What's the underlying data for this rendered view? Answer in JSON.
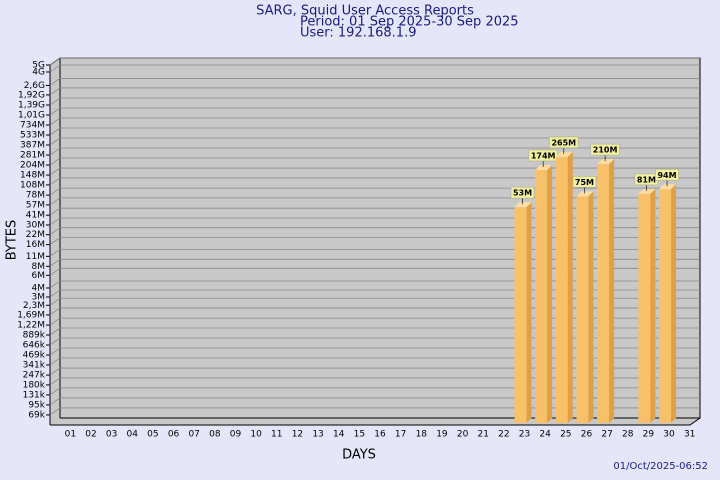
{
  "chart_data": {
    "type": "bar",
    "title": "SARG, Squid User Access Reports",
    "subtitle": [
      "Period: 01 Sep 2025-30 Sep 2025",
      "User: 192.168.1.9"
    ],
    "x_label": "DAYS",
    "y_label": "BYTES",
    "footer": "01/Oct/2025-06:52",
    "categories": [
      "01",
      "02",
      "03",
      "04",
      "05",
      "06",
      "07",
      "08",
      "09",
      "10",
      "11",
      "12",
      "13",
      "14",
      "15",
      "16",
      "17",
      "18",
      "19",
      "20",
      "21",
      "22",
      "23",
      "24",
      "25",
      "26",
      "27",
      "28",
      "29",
      "30",
      "31"
    ],
    "values": [
      null,
      null,
      null,
      null,
      null,
      null,
      null,
      null,
      null,
      null,
      null,
      null,
      null,
      null,
      null,
      null,
      null,
      null,
      null,
      null,
      null,
      null,
      53000000,
      174000000,
      265000000,
      75000000,
      210000000,
      null,
      81000000,
      94000000,
      null
    ],
    "value_labels": [
      null,
      null,
      null,
      null,
      null,
      null,
      null,
      null,
      null,
      null,
      null,
      null,
      null,
      null,
      null,
      null,
      null,
      null,
      null,
      null,
      null,
      null,
      "53M",
      "174M",
      "265M",
      "75M",
      "210M",
      null,
      "81M",
      "94M",
      null
    ],
    "color": "#f8c068",
    "log_scale": true,
    "grid": true,
    "ylim": [
      50000,
      5000000000
    ],
    "yticks": [
      {
        "value": 69000,
        "label": "69k"
      },
      {
        "value": 95000,
        "label": "95k"
      },
      {
        "value": 131000,
        "label": "131k"
      },
      {
        "value": 180000,
        "label": "180k"
      },
      {
        "value": 247000,
        "label": "247k"
      },
      {
        "value": 341000,
        "label": "341k"
      },
      {
        "value": 469000,
        "label": "469k"
      },
      {
        "value": 646000,
        "label": "646k"
      },
      {
        "value": 889000,
        "label": "889k"
      },
      {
        "value": 1220000,
        "label": "1,22M"
      },
      {
        "value": 1690000,
        "label": "1,69M"
      },
      {
        "value": 2300000,
        "label": "2,3M"
      },
      {
        "value": 3000000,
        "label": "3M"
      },
      {
        "value": 4000000,
        "label": "4M"
      },
      {
        "value": 6000000,
        "label": "6M"
      },
      {
        "value": 8000000,
        "label": "8M"
      },
      {
        "value": 11000000,
        "label": "11M"
      },
      {
        "value": 16000000,
        "label": "16M"
      },
      {
        "value": 22000000,
        "label": "22M"
      },
      {
        "value": 30000000,
        "label": "30M"
      },
      {
        "value": 41000000,
        "label": "41M"
      },
      {
        "value": 57000000,
        "label": "57M"
      },
      {
        "value": 78000000,
        "label": "78M"
      },
      {
        "value": 108000000,
        "label": "108M"
      },
      {
        "value": 148000000,
        "label": "148M"
      },
      {
        "value": 204000000,
        "label": "204M"
      },
      {
        "value": 281000000,
        "label": "281M"
      },
      {
        "value": 387000000,
        "label": "387M"
      },
      {
        "value": 533000000,
        "label": "533M"
      },
      {
        "value": 734000000,
        "label": "734M"
      },
      {
        "value": 1010000000,
        "label": "1,01G"
      },
      {
        "value": 1390000000,
        "label": "1,39G"
      },
      {
        "value": 1920000000,
        "label": "1,92G"
      },
      {
        "value": 2600000000,
        "label": "2,6G"
      },
      {
        "value": 4000000000,
        "label": "4G"
      },
      {
        "value": 5000000000,
        "label": "5G"
      }
    ]
  }
}
